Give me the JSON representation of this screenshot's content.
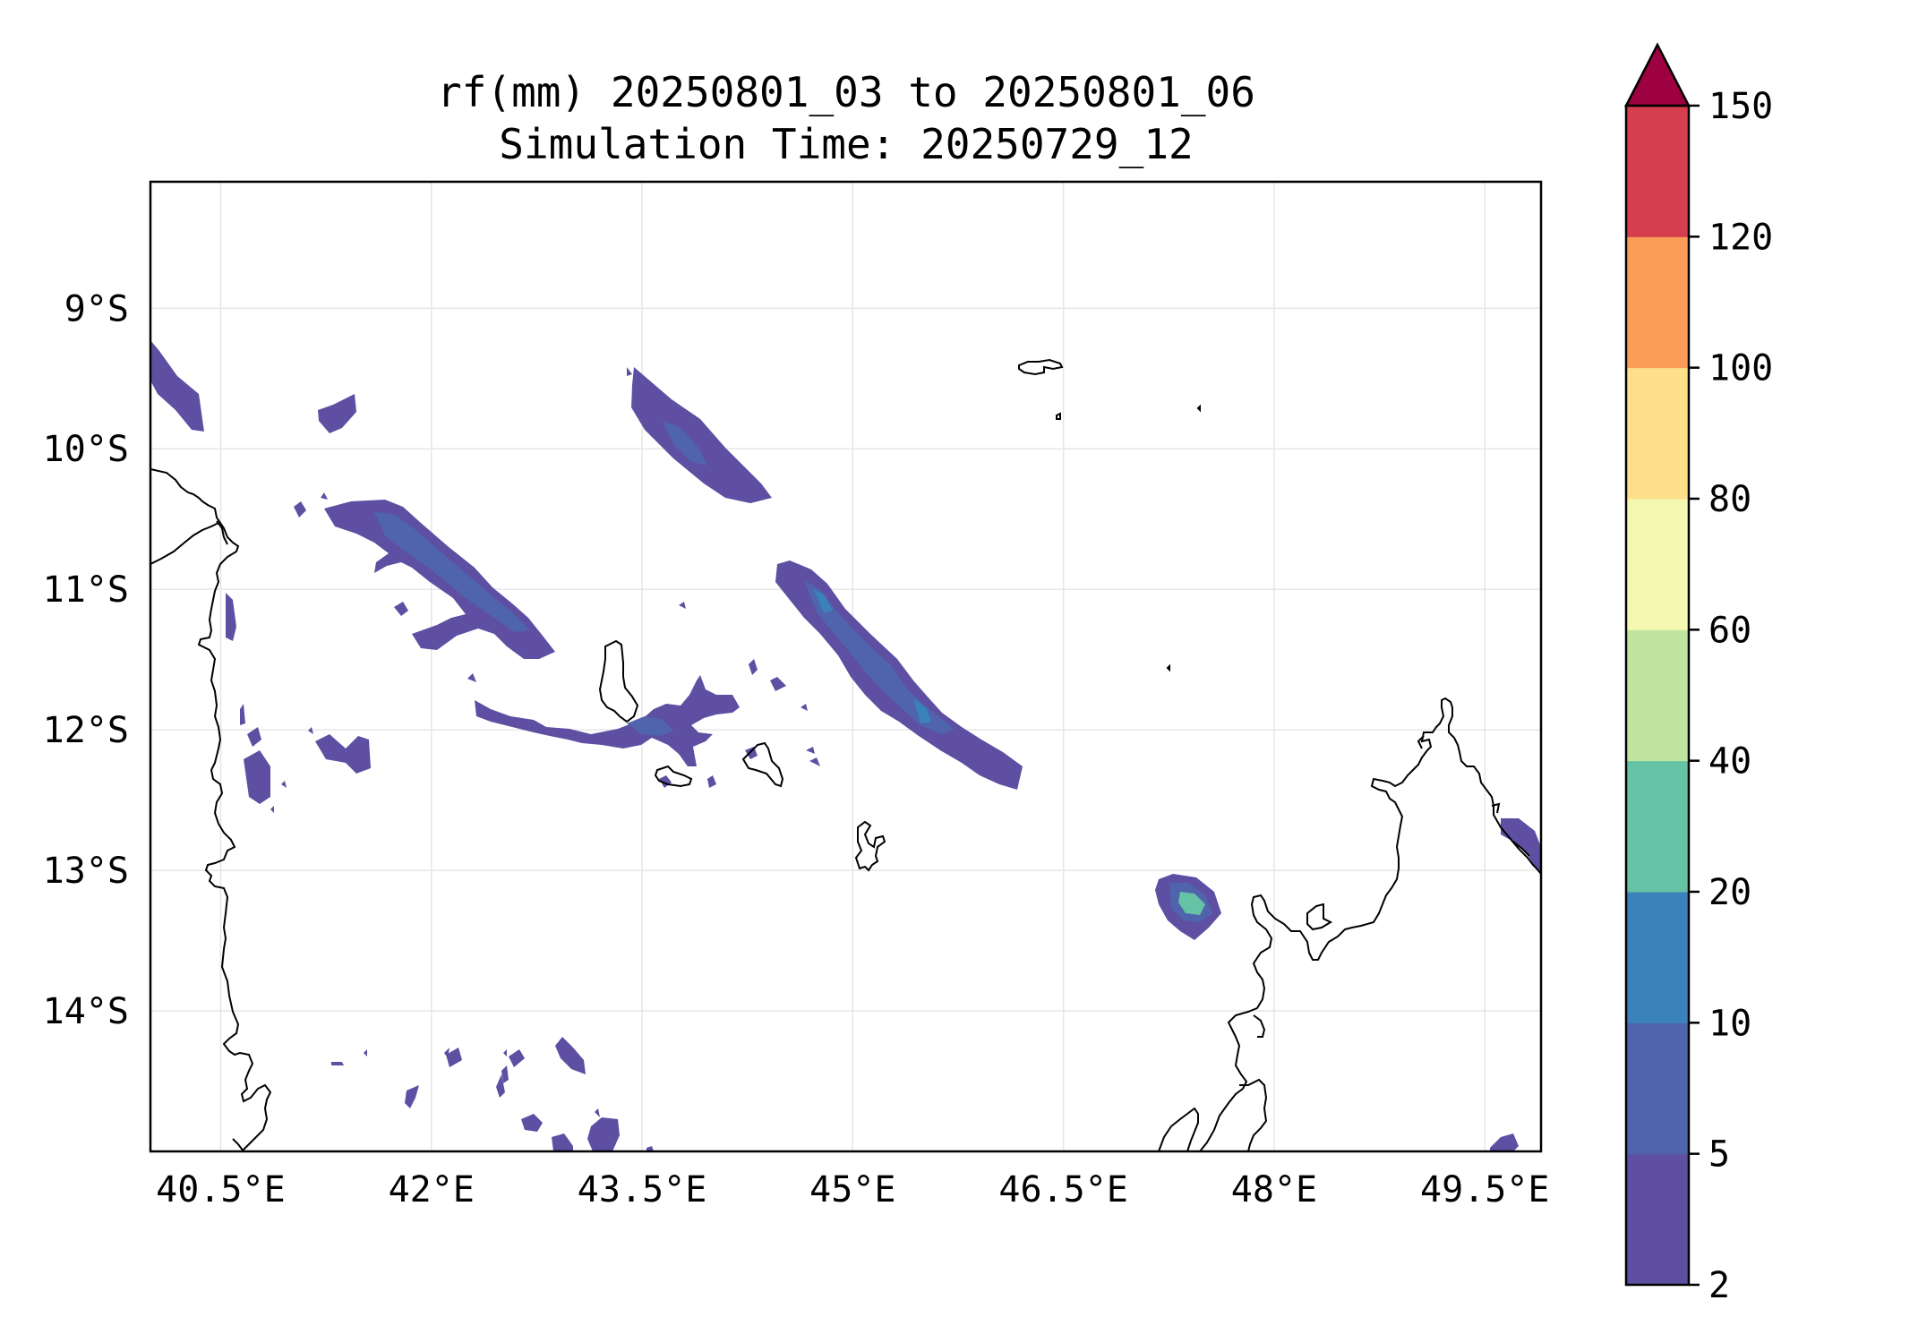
{
  "title": {
    "line1": "rf(mm) 20250801_03 to 20250801_06",
    "line2": "Simulation Time: 20250729_12"
  },
  "map": {
    "lon_range": [
      40.0,
      49.9
    ],
    "lat_range": [
      -15.0,
      -8.1
    ],
    "lon_ticks": [
      {
        "value": 40.5,
        "label": "40.5°E"
      },
      {
        "value": 42.0,
        "label": "42°E"
      },
      {
        "value": 43.5,
        "label": "43.5°E"
      },
      {
        "value": 45.0,
        "label": "45°E"
      },
      {
        "value": 46.5,
        "label": "46.5°E"
      },
      {
        "value": 48.0,
        "label": "48°E"
      },
      {
        "value": 49.5,
        "label": "49.5°E"
      }
    ],
    "lat_ticks": [
      {
        "value": -9,
        "label": "9°S"
      },
      {
        "value": -10,
        "label": "10°S"
      },
      {
        "value": -11,
        "label": "11°S"
      },
      {
        "value": -12,
        "label": "12°S"
      },
      {
        "value": -13,
        "label": "13°S"
      },
      {
        "value": -14,
        "label": "14°S"
      }
    ],
    "grid": true,
    "colors": {
      "lvl_2_5": "#5e4fa2",
      "lvl_5_10": "#4f64ad",
      "lvl_10_20": "#3b82bd",
      "lvl_20_40": "#66c2a5",
      "coastline": "#000000",
      "gridline": "#e6e6e6"
    }
  },
  "colorbar": {
    "levels": [
      {
        "value": 2,
        "label": "2",
        "color": "#5e4fa2"
      },
      {
        "value": 5,
        "label": "5",
        "color": "#4f64ad"
      },
      {
        "value": 10,
        "label": "10",
        "color": "#3b82bd"
      },
      {
        "value": 20,
        "label": "20",
        "color": "#66c2a5"
      },
      {
        "value": 40,
        "label": "40",
        "color": "#bfe5a0"
      },
      {
        "value": 60,
        "label": "60",
        "color": "#f3f9b0"
      },
      {
        "value": 80,
        "label": "80",
        "color": "#fee08b"
      },
      {
        "value": 100,
        "label": "100",
        "color": "#f99d59"
      },
      {
        "value": 120,
        "label": "120",
        "color": "#d53e4f"
      },
      {
        "value": 150,
        "label": "150",
        "color": "#9e0142"
      }
    ],
    "extend": "max"
  }
}
